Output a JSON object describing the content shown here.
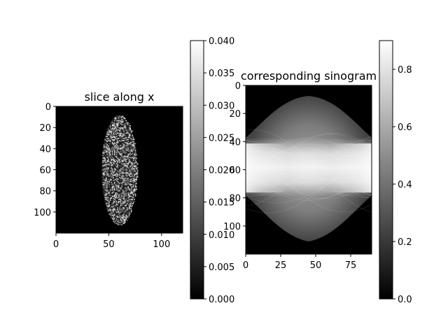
{
  "chart_data": [
    {
      "type": "heatmap",
      "title": "slice along x",
      "xlabel": "",
      "ylabel": "",
      "colormap": "gray",
      "xlim": [
        0,
        120
      ],
      "ylim": [
        120,
        0
      ],
      "x_ticks": [
        0,
        50,
        100
      ],
      "y_ticks": [
        0,
        20,
        40,
        60,
        80,
        100
      ],
      "content": "speckled noisy vertical ellipse on black background",
      "ellipse": {
        "center_x": 60,
        "center_y": 60,
        "semi_axis_x": 17,
        "semi_axis_y": 52
      },
      "colorbar": {
        "range": [
          0.0,
          0.04
        ],
        "ticks": [
          "0.000",
          "0.005",
          "0.010",
          "0.015",
          "0.020",
          "0.025",
          "0.030",
          "0.035",
          "0.040"
        ]
      }
    },
    {
      "type": "heatmap",
      "title": "corresponding sinogram",
      "xlabel": "",
      "ylabel": "",
      "colormap": "gray",
      "xlim": [
        0,
        90
      ],
      "ylim": [
        120,
        0
      ],
      "x_ticks": [
        0,
        25,
        50,
        75
      ],
      "y_ticks": [
        0,
        20,
        40,
        60,
        80,
        100
      ],
      "content": "sinogram of ellipse: bright horizontal band at rows ~45-75 near angles 0 and 90, wide faint lobe spanning rows ~8-112 near angle 45",
      "colorbar": {
        "range": [
          0.0,
          0.9
        ],
        "ticks": [
          "0.0",
          "0.2",
          "0.4",
          "0.6",
          "0.8"
        ]
      }
    }
  ]
}
